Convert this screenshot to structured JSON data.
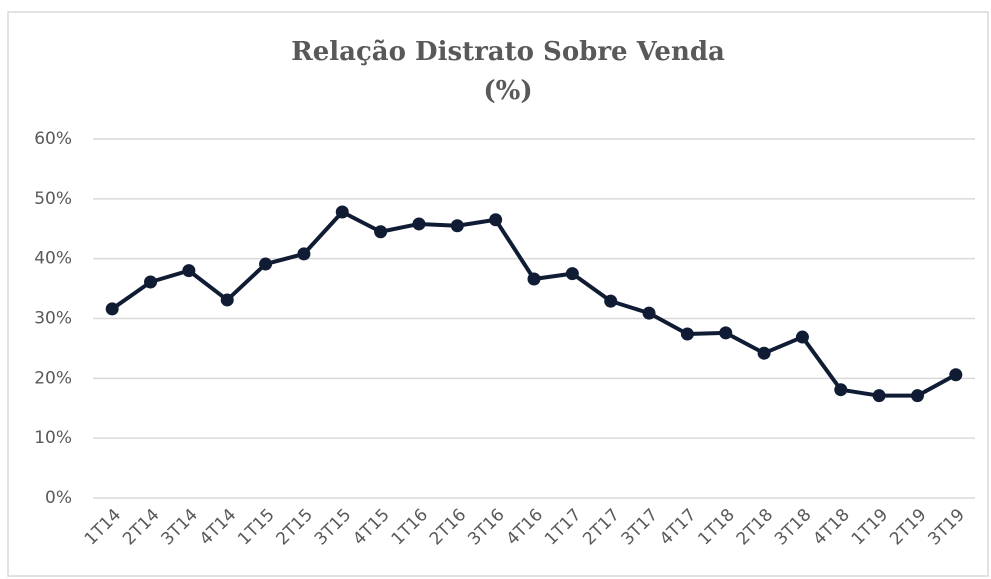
{
  "chart_data": {
    "type": "line",
    "title": "Relação Distrato Sobre Venda",
    "subtitle": "(%)",
    "categories": [
      "1T14",
      "2T14",
      "3T14",
      "4T14",
      "1T15",
      "2T15",
      "3T15",
      "4T15",
      "1T16",
      "2T16",
      "3T16",
      "4T16",
      "1T17",
      "2T17",
      "3T17",
      "4T17",
      "1T18",
      "2T18",
      "3T18",
      "4T18",
      "1T19",
      "2T19",
      "3T19"
    ],
    "series": [
      {
        "name": "Relação Distrato Sobre Venda",
        "color": "#0f1c33",
        "values": [
          31.6,
          36.1,
          38.0,
          33.1,
          39.1,
          40.8,
          47.8,
          44.5,
          45.8,
          45.5,
          46.5,
          36.6,
          37.5,
          32.9,
          30.9,
          27.4,
          27.6,
          24.2,
          26.9,
          18.1,
          17.1,
          17.1,
          20.6
        ]
      }
    ],
    "ylim": [
      0,
      60
    ],
    "yticks": [
      {
        "value": 0,
        "label": "0%"
      },
      {
        "value": 10,
        "label": "10%"
      },
      {
        "value": 20,
        "label": "20%"
      },
      {
        "value": 30,
        "label": "30%"
      },
      {
        "value": 40,
        "label": "40%"
      },
      {
        "value": 50,
        "label": "50%"
      },
      {
        "value": 60,
        "label": "60%"
      }
    ],
    "grid": true
  }
}
